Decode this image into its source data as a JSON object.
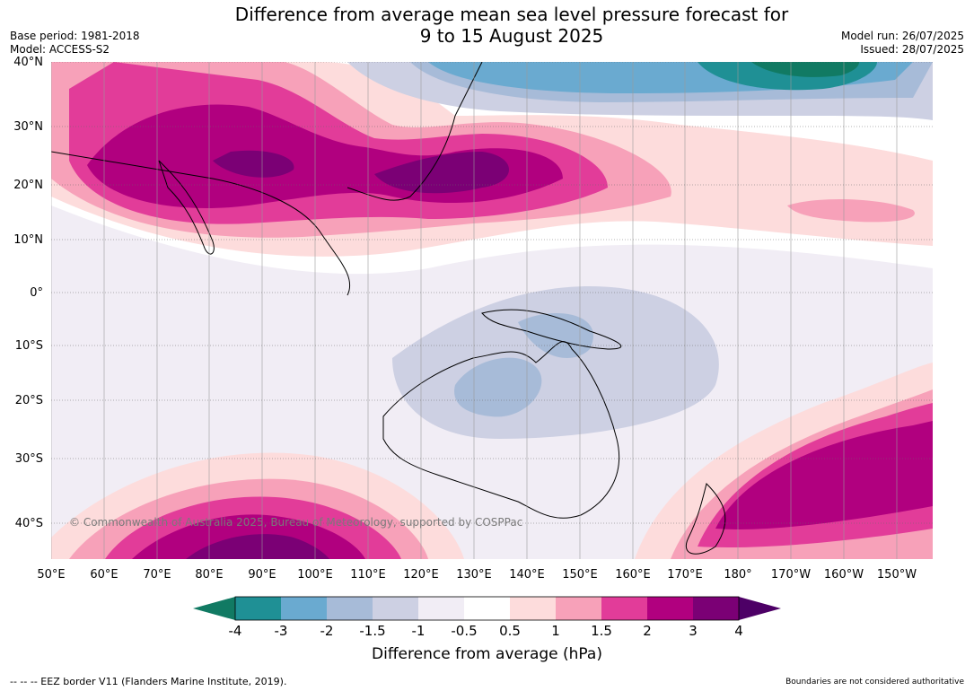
{
  "header": {
    "title_line1": "Difference from average mean sea level pressure forecast for",
    "title_line2": "9 to 15 August 2025",
    "base_period": "Base period: 1981-2018",
    "model": "Model: ACCESS-S2",
    "model_run": "Model run: 26/07/2025",
    "issued": "Issued: 28/07/2025"
  },
  "map": {
    "lat_labels": [
      "40°N",
      "30°N",
      "20°N",
      "10°N",
      "0°",
      "10°S",
      "20°S",
      "30°S",
      "40°S"
    ],
    "lon_labels": [
      "50°E",
      "60°E",
      "70°E",
      "80°E",
      "90°E",
      "100°E",
      "110°E",
      "120°E",
      "130°E",
      "140°E",
      "150°E",
      "160°E",
      "170°E",
      "180°",
      "170°W",
      "160°W",
      "150°W"
    ],
    "copyright": "© Commonwealth of Australia 2025, Bureau of Meteorology, supported by COSPPac"
  },
  "colorbar": {
    "title": "Difference from average (hPa)",
    "tick_labels": [
      "-4",
      "-3",
      "-2",
      "-1.5",
      "-1",
      "-0.5",
      "0.5",
      "1",
      "1.5",
      "2",
      "3",
      "4"
    ],
    "colors": [
      "#117a63",
      "#1f9095",
      "#6aaad0",
      "#a7bbd8",
      "#cdd0e3",
      "#f1edf5",
      "#ffffff",
      "#fddcdc",
      "#f7a1b9",
      "#e23c99",
      "#b1007f",
      "#7b0075",
      "#4d0066"
    ]
  },
  "footer": {
    "eez": "--  --  -- EEZ border V11 (Flanders Marine Institute, 2019).",
    "disclaimer": "Boundaries are not considered authoritative"
  }
}
